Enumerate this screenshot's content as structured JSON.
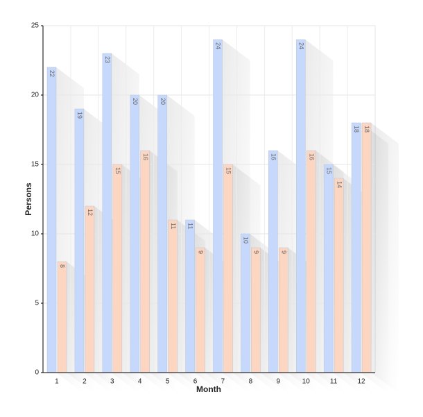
{
  "chart_data": {
    "type": "bar",
    "x_label": "Month",
    "y_label": "Persons",
    "categories": [
      "1",
      "2",
      "3",
      "4",
      "5",
      "6",
      "7",
      "8",
      "9",
      "10",
      "11",
      "12"
    ],
    "series": [
      {
        "color": "#c6d9fc",
        "values": [
          22,
          19,
          23,
          20,
          20,
          11,
          24,
          10,
          16,
          24,
          15,
          18
        ]
      },
      {
        "color": "#fdd6c2",
        "values": [
          8,
          12,
          15,
          16,
          11,
          9,
          15,
          9,
          9,
          16,
          14,
          18
        ]
      }
    ],
    "ylim": [
      0,
      25
    ],
    "yticks": [
      0,
      5,
      10,
      15,
      20,
      25
    ],
    "grid": true
  }
}
